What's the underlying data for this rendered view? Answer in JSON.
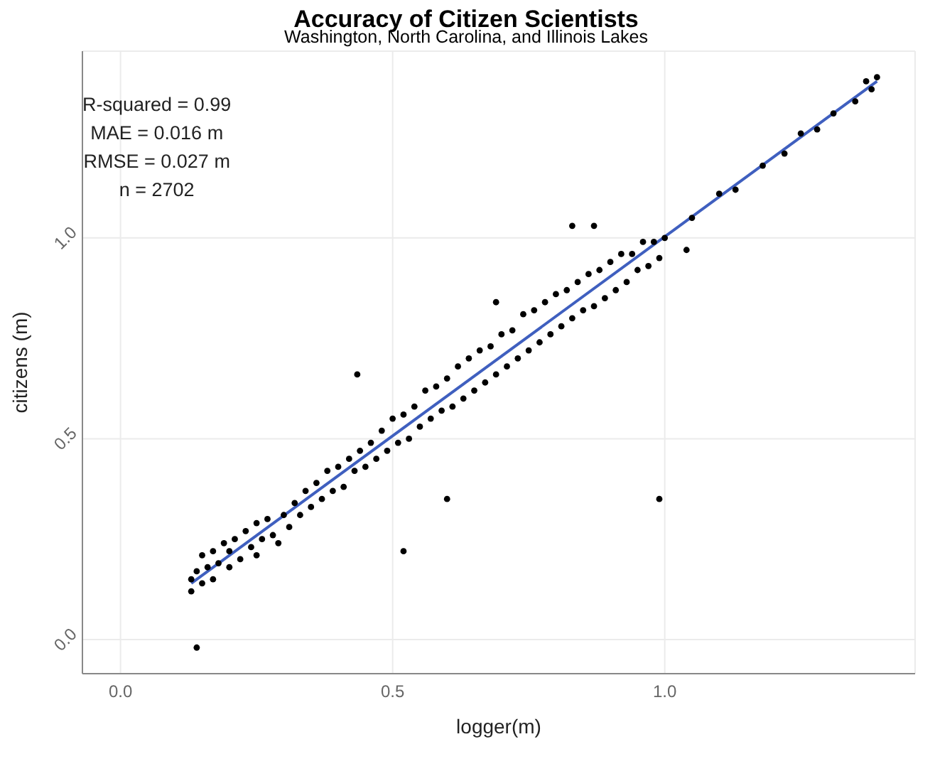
{
  "chart_data": {
    "type": "scatter",
    "title": "Accuracy of Citizen Scientists",
    "subtitle": "Washington, North Carolina, and Illinois Lakes",
    "xlabel": "logger(m)",
    "ylabel": "citizens (m)",
    "annotations": [
      "R-squared =  0.99",
      "MAE = 0.016 m",
      "RMSE =  0.027 m",
      "n =  2702"
    ],
    "xlim": [
      -0.07,
      1.46
    ],
    "ylim": [
      -0.085,
      1.465
    ],
    "xticks": [
      {
        "value": 0,
        "label": "0.0"
      },
      {
        "value": 0.5,
        "label": "0.5"
      },
      {
        "value": 1,
        "label": "1.0"
      }
    ],
    "yticks": [
      {
        "value": 0,
        "label": "0.0"
      },
      {
        "value": 0.5,
        "label": "0.5"
      },
      {
        "value": 1,
        "label": "1.0"
      }
    ],
    "grid": true,
    "series": [
      {
        "marker": "circle",
        "color": "#000000",
        "x": [
          0.13,
          0.13,
          0.14,
          0.15,
          0.15,
          0.16,
          0.17,
          0.17,
          0.18,
          0.19,
          0.2,
          0.2,
          0.21,
          0.22,
          0.23,
          0.24,
          0.25,
          0.25,
          0.26,
          0.27,
          0.28,
          0.29,
          0.3,
          0.31,
          0.32,
          0.33,
          0.34,
          0.35,
          0.36,
          0.37,
          0.38,
          0.39,
          0.4,
          0.41,
          0.42,
          0.43,
          0.44,
          0.45,
          0.46,
          0.47,
          0.48,
          0.49,
          0.5,
          0.51,
          0.52,
          0.53,
          0.54,
          0.55,
          0.56,
          0.57,
          0.58,
          0.59,
          0.6,
          0.61,
          0.62,
          0.63,
          0.64,
          0.65,
          0.66,
          0.67,
          0.68,
          0.69,
          0.7,
          0.71,
          0.72,
          0.73,
          0.74,
          0.75,
          0.76,
          0.77,
          0.78,
          0.79,
          0.8,
          0.81,
          0.82,
          0.83,
          0.84,
          0.85,
          0.86,
          0.87,
          0.88,
          0.89,
          0.9,
          0.91,
          0.92,
          0.93,
          0.94,
          0.95,
          0.96,
          0.97,
          0.98,
          0.99,
          1.0,
          1.05,
          1.1,
          1.13,
          1.18,
          1.22,
          1.25,
          1.28,
          1.31,
          1.35,
          1.37,
          1.38,
          1.39,
          0.14,
          0.435,
          0.52,
          0.6,
          0.99,
          0.83,
          0.87,
          0.69,
          1.04
        ],
        "values": [
          0.12,
          0.15,
          0.17,
          0.14,
          0.21,
          0.18,
          0.15,
          0.22,
          0.19,
          0.24,
          0.18,
          0.22,
          0.25,
          0.2,
          0.27,
          0.23,
          0.21,
          0.29,
          0.25,
          0.3,
          0.26,
          0.24,
          0.31,
          0.28,
          0.34,
          0.31,
          0.37,
          0.33,
          0.39,
          0.35,
          0.42,
          0.37,
          0.43,
          0.38,
          0.45,
          0.42,
          0.47,
          0.43,
          0.49,
          0.45,
          0.52,
          0.47,
          0.55,
          0.49,
          0.56,
          0.5,
          0.58,
          0.53,
          0.62,
          0.55,
          0.63,
          0.57,
          0.65,
          0.58,
          0.68,
          0.6,
          0.7,
          0.62,
          0.72,
          0.64,
          0.73,
          0.66,
          0.76,
          0.68,
          0.77,
          0.7,
          0.81,
          0.72,
          0.82,
          0.74,
          0.84,
          0.76,
          0.86,
          0.78,
          0.87,
          0.8,
          0.89,
          0.82,
          0.91,
          0.83,
          0.92,
          0.85,
          0.94,
          0.87,
          0.96,
          0.89,
          0.96,
          0.92,
          0.99,
          0.93,
          0.99,
          0.95,
          1.0,
          1.05,
          1.11,
          1.12,
          1.18,
          1.21,
          1.26,
          1.27,
          1.31,
          1.34,
          1.39,
          1.37,
          1.4,
          -0.02,
          0.66,
          0.22,
          0.35,
          0.35,
          1.03,
          1.03,
          0.84,
          0.97
        ]
      },
      {
        "type": "line",
        "marker": "none",
        "color": "#3f5fbf",
        "x": [
          0.13,
          1.39
        ],
        "values": [
          0.14,
          1.39
        ]
      }
    ]
  }
}
